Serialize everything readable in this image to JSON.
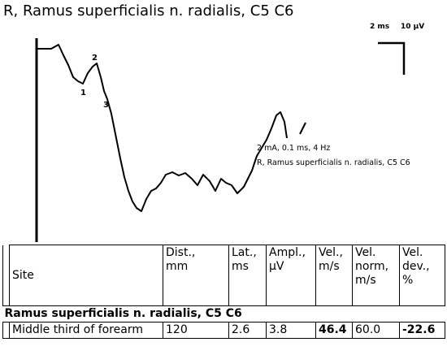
{
  "title": "R, Ramus superficialis n. radialis, C5 C6",
  "scale": {
    "time": "2 ms",
    "amplitude": "10 µV"
  },
  "stimulus": {
    "params": "2 mA, 0.1 ms, 4 Hz",
    "nerve": "R, Ramus superficialis n. radialis, C5 C6"
  },
  "markers": [
    "1",
    "2",
    "3"
  ],
  "table": {
    "headers": {
      "site": "Site",
      "dist": [
        "Dist.,",
        "mm"
      ],
      "lat": [
        "Lat.,",
        "ms"
      ],
      "ampl": [
        "Ampl.,",
        "µV"
      ],
      "vel": [
        "Vel.,",
        "m/s"
      ],
      "norm": [
        "Vel.",
        "norm,",
        "m/s"
      ],
      "dev": [
        "Vel.",
        "dev.,",
        "%"
      ]
    },
    "group": "Ramus superficialis n. radialis, C5 C6",
    "row": {
      "site": "Middle third of forearm",
      "dist": "120",
      "lat": "2.6",
      "ampl": "3.8",
      "vel": "46.4",
      "norm": "60.0",
      "dev": "-22.6"
    }
  }
}
